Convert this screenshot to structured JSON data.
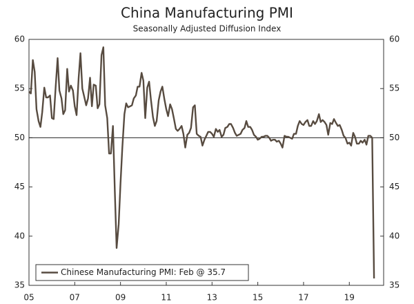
{
  "chart_data": {
    "type": "line",
    "title": "China Manufacturing PMI",
    "subtitle": "Seasonally Adjusted Diffusion Index",
    "x": [
      2005,
      2005.08,
      2005.17,
      2005.25,
      2005.33,
      2005.42,
      2005.5,
      2005.58,
      2005.67,
      2005.75,
      2005.83,
      2005.92,
      2006,
      2006.08,
      2006.17,
      2006.25,
      2006.33,
      2006.42,
      2006.5,
      2006.58,
      2006.67,
      2006.75,
      2006.83,
      2006.92,
      2007,
      2007.08,
      2007.17,
      2007.25,
      2007.33,
      2007.42,
      2007.5,
      2007.58,
      2007.67,
      2007.75,
      2007.83,
      2007.92,
      2008,
      2008.08,
      2008.17,
      2008.25,
      2008.33,
      2008.42,
      2008.5,
      2008.58,
      2008.67,
      2008.75,
      2008.83,
      2008.92,
      2009,
      2009.08,
      2009.17,
      2009.25,
      2009.33,
      2009.42,
      2009.5,
      2009.58,
      2009.67,
      2009.75,
      2009.83,
      2009.92,
      2010,
      2010.08,
      2010.17,
      2010.25,
      2010.33,
      2010.42,
      2010.5,
      2010.58,
      2010.67,
      2010.75,
      2010.83,
      2010.92,
      2011,
      2011.08,
      2011.17,
      2011.25,
      2011.33,
      2011.42,
      2011.5,
      2011.58,
      2011.67,
      2011.75,
      2011.83,
      2011.92,
      2012,
      2012.08,
      2012.17,
      2012.25,
      2012.33,
      2012.42,
      2012.5,
      2012.58,
      2012.67,
      2012.75,
      2012.83,
      2012.92,
      2013,
      2013.08,
      2013.17,
      2013.25,
      2013.33,
      2013.42,
      2013.5,
      2013.58,
      2013.67,
      2013.75,
      2013.83,
      2013.92,
      2014,
      2014.08,
      2014.17,
      2014.25,
      2014.33,
      2014.42,
      2014.5,
      2014.58,
      2014.67,
      2014.75,
      2014.83,
      2014.92,
      2015,
      2015.08,
      2015.17,
      2015.25,
      2015.33,
      2015.42,
      2015.5,
      2015.58,
      2015.67,
      2015.75,
      2015.83,
      2015.92,
      2016,
      2016.08,
      2016.17,
      2016.25,
      2016.33,
      2016.42,
      2016.5,
      2016.58,
      2016.67,
      2016.75,
      2016.83,
      2016.92,
      2017,
      2017.08,
      2017.17,
      2017.25,
      2017.33,
      2017.42,
      2017.5,
      2017.58,
      2017.67,
      2017.75,
      2017.83,
      2017.92,
      2018,
      2018.08,
      2018.17,
      2018.25,
      2018.33,
      2018.42,
      2018.5,
      2018.58,
      2018.67,
      2018.75,
      2018.83,
      2018.92,
      2019,
      2019.08,
      2019.17,
      2019.25,
      2019.33,
      2019.42,
      2019.5,
      2019.58,
      2019.67,
      2019.75,
      2019.83,
      2019.92,
      2020,
      2020.08
    ],
    "series": [
      {
        "name": "Chinese Manufacturing PMI: Feb @ 35.7",
        "color": "#574b40",
        "values": [
          54.7,
          54.5,
          57.9,
          56.7,
          52.9,
          51.7,
          51.1,
          52.6,
          55.1,
          54.1,
          54.1,
          54.3,
          52.0,
          51.9,
          55.3,
          58.1,
          54.8,
          54.0,
          52.4,
          52.8,
          57.0,
          54.7,
          55.3,
          54.8,
          53.2,
          52.3,
          56.1,
          58.6,
          55.0,
          54.1,
          53.3,
          54.0,
          56.1,
          53.2,
          55.4,
          55.3,
          53.0,
          53.4,
          58.4,
          59.2,
          53.3,
          52.0,
          48.4,
          48.4,
          51.2,
          44.6,
          38.8,
          41.2,
          45.3,
          49.0,
          52.4,
          53.5,
          53.1,
          53.2,
          53.3,
          54.0,
          54.3,
          55.2,
          55.2,
          56.6,
          55.8,
          52.0,
          55.1,
          55.7,
          53.9,
          52.1,
          51.2,
          51.7,
          53.8,
          54.7,
          55.2,
          53.9,
          52.9,
          52.2,
          53.4,
          52.9,
          52.0,
          50.9,
          50.7,
          50.9,
          51.2,
          50.4,
          49.0,
          50.3,
          50.5,
          51.0,
          53.1,
          53.3,
          50.4,
          50.2,
          50.1,
          49.2,
          49.8,
          50.2,
          50.6,
          50.6,
          50.4,
          50.1,
          50.9,
          50.6,
          50.8,
          50.1,
          50.3,
          51.0,
          51.1,
          51.4,
          51.4,
          51.0,
          50.5,
          50.2,
          50.3,
          50.4,
          50.8,
          51.0,
          51.7,
          51.1,
          51.1,
          50.8,
          50.3,
          50.1,
          49.8,
          49.9,
          50.1,
          50.1,
          50.2,
          50.2,
          50.0,
          49.7,
          49.8,
          49.8,
          49.6,
          49.7,
          49.4,
          49.0,
          50.2,
          50.1,
          50.1,
          50.0,
          49.9,
          50.4,
          50.4,
          51.2,
          51.7,
          51.4,
          51.3,
          51.6,
          51.8,
          51.2,
          51.2,
          51.7,
          51.4,
          51.7,
          52.4,
          51.6,
          51.8,
          51.6,
          51.3,
          50.3,
          51.5,
          51.4,
          51.9,
          51.5,
          51.2,
          51.3,
          50.8,
          50.2,
          50.0,
          49.4,
          49.5,
          49.2,
          50.5,
          50.1,
          49.4,
          49.4,
          49.7,
          49.5,
          49.8,
          49.3,
          50.2,
          50.2,
          50.0,
          35.7
        ]
      }
    ],
    "reference_line": 50,
    "xlim": [
      2005,
      2020.5
    ],
    "xticks": [
      {
        "value": 2005,
        "label": "05"
      },
      {
        "value": 2007,
        "label": "07"
      },
      {
        "value": 2009,
        "label": "09"
      },
      {
        "value": 2011,
        "label": "11"
      },
      {
        "value": 2013,
        "label": "13"
      },
      {
        "value": 2015,
        "label": "15"
      },
      {
        "value": 2017,
        "label": "17"
      },
      {
        "value": 2019,
        "label": "19"
      }
    ],
    "ylim": [
      35,
      60
    ],
    "yticks": [
      35,
      40,
      45,
      50,
      55,
      60
    ],
    "legend": "lower left"
  }
}
